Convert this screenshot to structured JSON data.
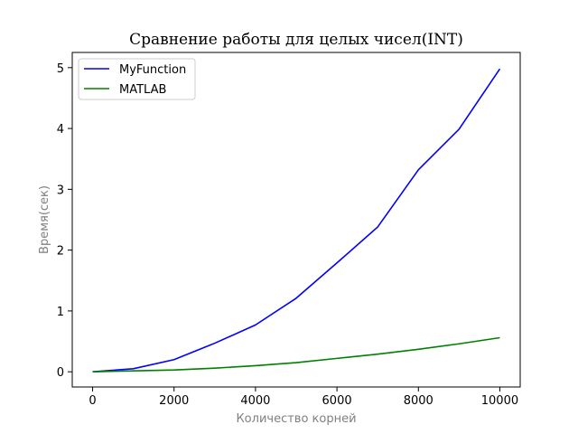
{
  "chart_data": {
    "type": "line",
    "title": "Сравнение работы для целых чисел(INT)",
    "xlabel": "Количество корней",
    "ylabel": "Время(сек)",
    "xlim": [
      -500,
      10500
    ],
    "ylim": [
      -0.25,
      5.25
    ],
    "xticks": [
      0,
      2000,
      4000,
      6000,
      8000,
      10000
    ],
    "yticks": [
      0,
      1,
      2,
      3,
      4,
      5
    ],
    "x": [
      0,
      1000,
      2000,
      3000,
      4000,
      5000,
      6000,
      7000,
      8000,
      9000,
      10000
    ],
    "series": [
      {
        "name": "MyFunction",
        "color": "#0000ff",
        "values": [
          0.0,
          0.05,
          0.2,
          0.47,
          0.77,
          1.21,
          1.79,
          2.38,
          3.32,
          3.99,
          4.98
        ]
      },
      {
        "name": "MATLAB",
        "color": "#008000",
        "values": [
          0.0,
          0.015,
          0.03,
          0.06,
          0.1,
          0.15,
          0.22,
          0.29,
          0.37,
          0.46,
          0.56
        ]
      }
    ],
    "grid": false,
    "legend_position": "top-left"
  }
}
